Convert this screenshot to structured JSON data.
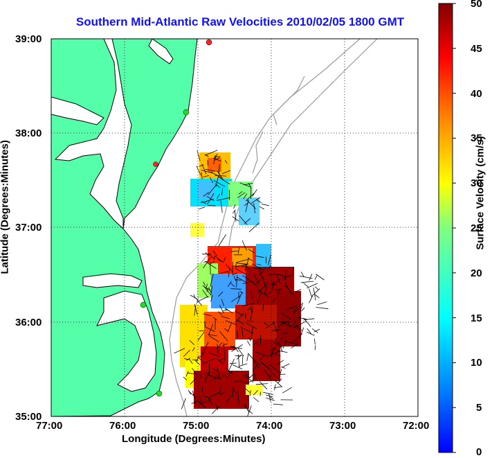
{
  "title": "Southern Mid-Atlantic Raw Velocities 2010/02/05 1800 GMT",
  "x_axis": {
    "label": "Longitude (Degrees:Minutes)",
    "ticks": [
      "77:00",
      "76:00",
      "75:00",
      "74:00",
      "73:00",
      "72:00"
    ]
  },
  "y_axis": {
    "label": "Latitude (Degrees:Minutes)",
    "ticks": [
      "39:00",
      "38:00",
      "37:00",
      "36:00",
      "35:00"
    ]
  },
  "colorbar": {
    "label": "Surface Velocity (cm/s)",
    "ticks": [
      "50",
      "45",
      "40",
      "35",
      "30",
      "25",
      "20",
      "15",
      "10",
      "5",
      "0"
    ],
    "min": 0,
    "max": 50,
    "colormap": "jet"
  },
  "colors": {
    "title": "#1010ff",
    "land": "#55ffaa",
    "coastline": "#000000",
    "bathymetry": "#999999",
    "station_active": "#22dd22",
    "station_inactive": "#ff2222"
  },
  "map": {
    "lon_range": [
      -77,
      -72
    ],
    "lat_range": [
      35,
      39
    ],
    "grid": "dotted"
  }
}
